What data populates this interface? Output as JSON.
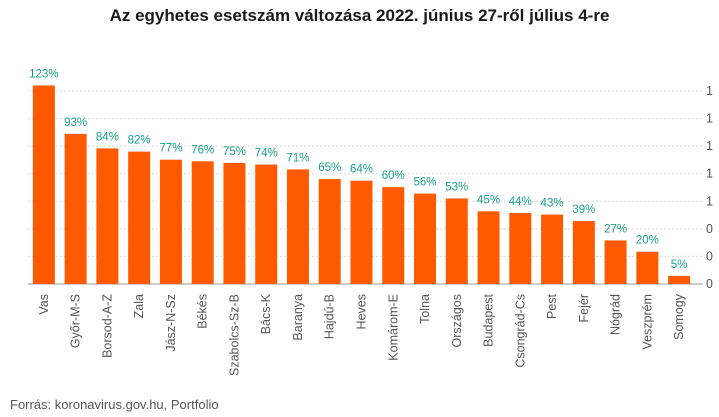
{
  "chart_data": {
    "type": "bar",
    "title": "Az egyhetes esetszám változása 2022. június 27-ről július 4-re",
    "categories": [
      "Vas",
      "Győr-M-S",
      "Borsod-A-Z",
      "Zala",
      "Jász-N-Sz",
      "Békés",
      "Szabolcs-Sz-B",
      "Bács-K",
      "Baranya",
      "Hajdú-B",
      "Heves",
      "Komárom-E",
      "Tolna",
      "Országos",
      "Budapest",
      "Csongrád-Cs",
      "Pest",
      "Fejér",
      "Nógrád",
      "Veszprém",
      "Somogy"
    ],
    "values": [
      123,
      93,
      84,
      82,
      77,
      76,
      75,
      74,
      71,
      65,
      64,
      60,
      56,
      53,
      45,
      44,
      43,
      39,
      27,
      20,
      5
    ],
    "value_labels": [
      "123%",
      "93%",
      "84%",
      "82%",
      "77%",
      "76%",
      "75%",
      "74%",
      "71%",
      "65%",
      "64%",
      "60%",
      "56%",
      "53%",
      "45%",
      "44%",
      "43%",
      "39%",
      "27%",
      "20%",
      "5%"
    ],
    "right_axis_tick_labels": [
      "0",
      "0",
      "0",
      "1",
      "1",
      "1",
      "1",
      "1"
    ],
    "ylim": [
      0,
      140
    ],
    "grid": "horizontal",
    "xlabel": "",
    "ylabel": "",
    "colors": {
      "bar": "#ff5a00",
      "value_label": "#1aa08a",
      "grid": "#d9d9d9"
    }
  },
  "source": "Forrás: koronavirus.gov.hu, Portfolio"
}
